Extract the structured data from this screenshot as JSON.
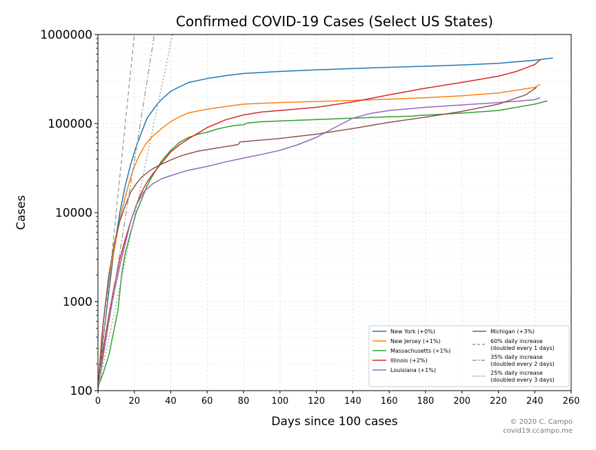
{
  "chart_data": {
    "type": "line",
    "title": "Confirmed COVID-19 Cases (Select US States)",
    "xlabel": "Days since 100 cases",
    "ylabel": "Cases",
    "xlim": [
      0,
      260
    ],
    "ylim": [
      100,
      1000000
    ],
    "yscale": "log",
    "grid": true,
    "legend_position": "bottom-right",
    "x_ticks": [
      "0",
      "20",
      "40",
      "60",
      "80",
      "100",
      "120",
      "140",
      "160",
      "180",
      "200",
      "220",
      "240",
      "260"
    ],
    "y_ticks": [
      "100",
      "1000",
      "10000",
      "100000",
      "1000000"
    ],
    "series": [
      {
        "name": "New York (+0%)",
        "color": "#1f77b4",
        "style": "solid",
        "points": [
          [
            0,
            110
          ],
          [
            3,
            400
          ],
          [
            6,
            1300
          ],
          [
            9,
            4000
          ],
          [
            12,
            10000
          ],
          [
            15,
            20000
          ],
          [
            18,
            35000
          ],
          [
            21,
            55000
          ],
          [
            24,
            80000
          ],
          [
            27,
            115000
          ],
          [
            30,
            140000
          ],
          [
            33,
            170000
          ],
          [
            36,
            195000
          ],
          [
            40,
            230000
          ],
          [
            45,
            260000
          ],
          [
            50,
            290000
          ],
          [
            60,
            320000
          ],
          [
            70,
            345000
          ],
          [
            80,
            365000
          ],
          [
            100,
            385000
          ],
          [
            120,
            400000
          ],
          [
            140,
            415000
          ],
          [
            160,
            428000
          ],
          [
            180,
            440000
          ],
          [
            200,
            455000
          ],
          [
            220,
            475000
          ],
          [
            240,
            515000
          ],
          [
            250,
            545000
          ]
        ]
      },
      {
        "name": "New Jersey (+1%)",
        "color": "#ff7f0e",
        "style": "solid",
        "points": [
          [
            0,
            110
          ],
          [
            2,
            400
          ],
          [
            4,
            900
          ],
          [
            6,
            1700
          ],
          [
            8,
            3000
          ],
          [
            10,
            5000
          ],
          [
            12,
            8500
          ],
          [
            15,
            15000
          ],
          [
            18,
            25000
          ],
          [
            20,
            33000
          ],
          [
            23,
            45000
          ],
          [
            26,
            58000
          ],
          [
            30,
            72000
          ],
          [
            35,
            88000
          ],
          [
            40,
            105000
          ],
          [
            45,
            120000
          ],
          [
            50,
            132000
          ],
          [
            60,
            145000
          ],
          [
            70,
            155000
          ],
          [
            80,
            165000
          ],
          [
            100,
            172000
          ],
          [
            120,
            177000
          ],
          [
            140,
            182000
          ],
          [
            160,
            188000
          ],
          [
            180,
            195000
          ],
          [
            200,
            205000
          ],
          [
            220,
            220000
          ],
          [
            240,
            255000
          ],
          [
            243,
            275000
          ]
        ]
      },
      {
        "name": "Massachusetts (+1%)",
        "color": "#2ca02c",
        "style": "solid",
        "points": [
          [
            0,
            110
          ],
          [
            3,
            160
          ],
          [
            6,
            250
          ],
          [
            9,
            500
          ],
          [
            11,
            800
          ],
          [
            13,
            2000
          ],
          [
            15,
            3500
          ],
          [
            18,
            6000
          ],
          [
            21,
            10000
          ],
          [
            24,
            14000
          ],
          [
            27,
            20000
          ],
          [
            30,
            26000
          ],
          [
            35,
            38000
          ],
          [
            40,
            50000
          ],
          [
            45,
            62000
          ],
          [
            50,
            70000
          ],
          [
            55,
            76000
          ],
          [
            60,
            80000
          ],
          [
            65,
            86000
          ],
          [
            70,
            91000
          ],
          [
            75,
            95000
          ],
          [
            80,
            97000
          ],
          [
            82,
            101000
          ],
          [
            90,
            105000
          ],
          [
            100,
            107000
          ],
          [
            120,
            111000
          ],
          [
            140,
            115000
          ],
          [
            160,
            119000
          ],
          [
            173,
            121000
          ],
          [
            176,
            123000
          ],
          [
            200,
            131000
          ],
          [
            220,
            140000
          ],
          [
            240,
            165000
          ],
          [
            247,
            180000
          ]
        ]
      },
      {
        "name": "Illinois (+2%)",
        "color": "#d62728",
        "style": "solid",
        "points": [
          [
            0,
            110
          ],
          [
            3,
            300
          ],
          [
            6,
            700
          ],
          [
            9,
            1500
          ],
          [
            12,
            3000
          ],
          [
            15,
            5000
          ],
          [
            18,
            8000
          ],
          [
            21,
            12000
          ],
          [
            24,
            17000
          ],
          [
            27,
            22000
          ],
          [
            30,
            27000
          ],
          [
            35,
            36000
          ],
          [
            40,
            48000
          ],
          [
            45,
            58000
          ],
          [
            50,
            68000
          ],
          [
            55,
            78000
          ],
          [
            60,
            90000
          ],
          [
            70,
            110000
          ],
          [
            80,
            125000
          ],
          [
            90,
            135000
          ],
          [
            100,
            140000
          ],
          [
            120,
            152000
          ],
          [
            140,
            175000
          ],
          [
            160,
            210000
          ],
          [
            180,
            250000
          ],
          [
            200,
            290000
          ],
          [
            220,
            340000
          ],
          [
            230,
            385000
          ],
          [
            240,
            460000
          ],
          [
            243,
            520000
          ]
        ]
      },
      {
        "name": "Louisiana (+1%)",
        "color": "#9467bd",
        "style": "solid",
        "points": [
          [
            0,
            110
          ],
          [
            3,
            250
          ],
          [
            6,
            600
          ],
          [
            9,
            1300
          ],
          [
            12,
            2500
          ],
          [
            15,
            4500
          ],
          [
            18,
            8000
          ],
          [
            21,
            12000
          ],
          [
            25,
            17000
          ],
          [
            30,
            21000
          ],
          [
            35,
            24000
          ],
          [
            40,
            26000
          ],
          [
            45,
            28000
          ],
          [
            50,
            30000
          ],
          [
            60,
            33000
          ],
          [
            70,
            37000
          ],
          [
            80,
            41000
          ],
          [
            90,
            45000
          ],
          [
            100,
            50000
          ],
          [
            110,
            58000
          ],
          [
            120,
            70000
          ],
          [
            130,
            90000
          ],
          [
            140,
            115000
          ],
          [
            150,
            130000
          ],
          [
            160,
            140000
          ],
          [
            180,
            152000
          ],
          [
            200,
            162000
          ],
          [
            220,
            172000
          ],
          [
            240,
            185000
          ],
          [
            243,
            195000
          ]
        ]
      },
      {
        "name": "Michigan (+3%)",
        "color": "#8c564b",
        "style": "solid",
        "points": [
          [
            0,
            110
          ],
          [
            3,
            600
          ],
          [
            6,
            2000
          ],
          [
            9,
            4500
          ],
          [
            12,
            8000
          ],
          [
            15,
            12000
          ],
          [
            18,
            17000
          ],
          [
            21,
            21000
          ],
          [
            24,
            25000
          ],
          [
            27,
            28000
          ],
          [
            30,
            31000
          ],
          [
            35,
            35000
          ],
          [
            40,
            39000
          ],
          [
            45,
            43000
          ],
          [
            50,
            46000
          ],
          [
            55,
            49000
          ],
          [
            60,
            51000
          ],
          [
            70,
            55000
          ],
          [
            77,
            58000
          ],
          [
            78,
            62000
          ],
          [
            85,
            64000
          ],
          [
            100,
            68000
          ],
          [
            120,
            76000
          ],
          [
            140,
            88000
          ],
          [
            160,
            103000
          ],
          [
            180,
            118000
          ],
          [
            200,
            137000
          ],
          [
            220,
            165000
          ],
          [
            235,
            210000
          ],
          [
            241,
            255000
          ]
        ]
      },
      {
        "name": "60% daily increase\n(doubled every 1 days)",
        "color": "#999999",
        "style": "dashed",
        "points": [
          [
            0,
            100
          ],
          [
            20,
            1000000
          ]
        ]
      },
      {
        "name": "35% daily increase\n(doubled every 2 days)",
        "color": "#999999",
        "style": "dashdot",
        "points": [
          [
            0,
            100
          ],
          [
            31,
            1000000
          ]
        ]
      },
      {
        "name": "25% daily increase\n(doubled every 3 days)",
        "color": "#999999",
        "style": "dotted",
        "points": [
          [
            0,
            100
          ],
          [
            41,
            1000000
          ]
        ]
      }
    ]
  },
  "credit": {
    "line1": "© 2020 C. Campo",
    "line2": "covid19.ccampo.me"
  }
}
